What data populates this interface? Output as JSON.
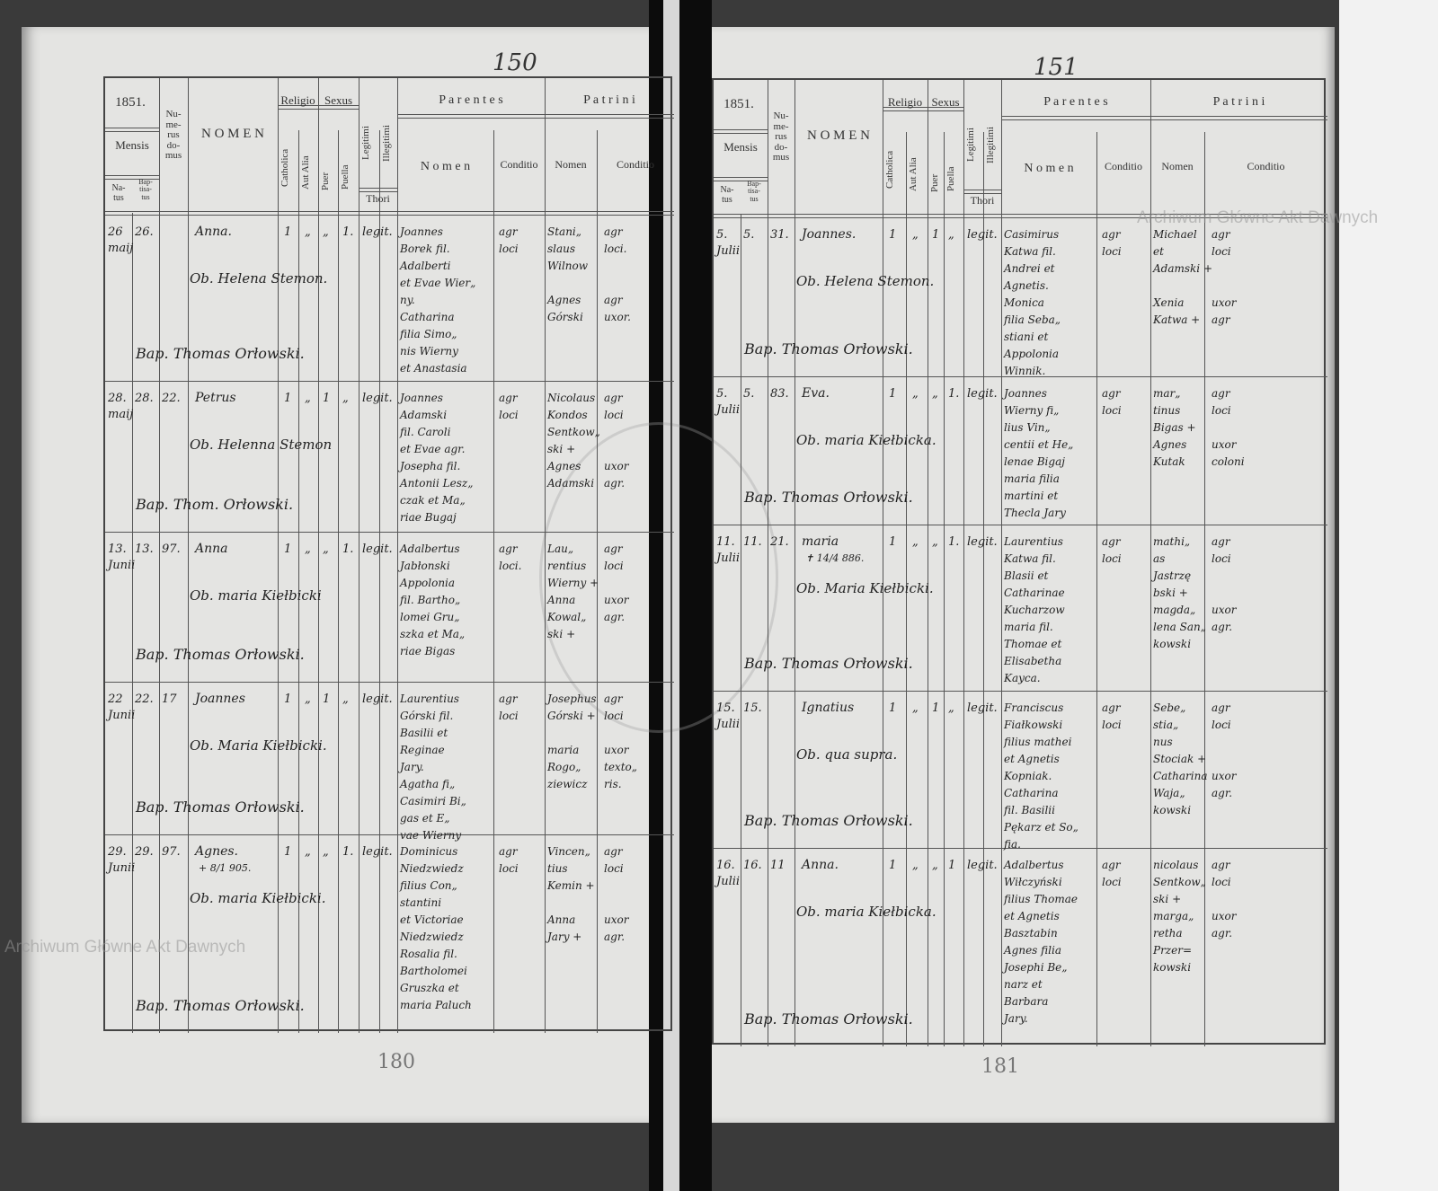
{
  "watermark": "Archiwum Główne Akt Dawnych",
  "colors": {
    "paper": "#e4e4e2",
    "ink": "#222222",
    "background": "#3a3a3a"
  },
  "header": {
    "year": "1851.",
    "mensis": "Mensis",
    "natus": "Na-\ntus",
    "baptisatus": "Bap-\ntisa-\ntus",
    "numerus_domus": "Nu-\nme-\nrus\ndo-\nmus",
    "nomen": "N O M E N",
    "religio": "Religio",
    "catholica": "Catholica",
    "aut_alia": "Aut Alia",
    "sexus": "Sexus",
    "puer": "Puer",
    "puella": "Puella",
    "legitimi": "Legitimi",
    "illegitimi": "Illegitimi",
    "thori": "Thori",
    "parentes": "P a r e n t e s",
    "patrini": "P a t r i n i",
    "parentes_nomen": "N o m e n",
    "conditio": "Conditio",
    "patrini_nomen": "Nomen"
  },
  "pages": [
    {
      "top_number": "150",
      "bottom_number": "180",
      "entries": [
        {
          "natus": "26",
          "baptisatus": "26.",
          "mensis": "maij",
          "domus": "",
          "nomen": "Anna.",
          "note": "",
          "cath": "1",
          "alia": "„",
          "puer": "„",
          "puella": "1.",
          "thori": "legit.",
          "parentes": "Joannes\nBorek fil.\nAdalberti\net Evae Wier„\nny.\nCatharina\nfilia Simo„\nnis Wierny\net Anastasia",
          "parentes_cond": "agr\nloci",
          "patrini": "Stani„\nslaus\nWilnow\n\nAgnes\nGórski",
          "patrini_cond": "agr\nloci.\n\n\nagr\nuxor.",
          "obstetrix": "Ob. Helena Stemon.",
          "baptizans": "Bap. Thomas Orłowski."
        },
        {
          "natus": "28.",
          "baptisatus": "28.",
          "mensis": "maij",
          "domus": "22.",
          "nomen": "Petrus",
          "note": "",
          "cath": "1",
          "alia": "„",
          "puer": "1",
          "puella": "„",
          "thori": "legit.",
          "parentes": "Joannes\nAdamski\nfil. Caroli\net Evae agr.\nJosepha fil.\nAntonii Lesz„\nczak et Ma„\nriae Bugaj",
          "parentes_cond": "agr\nloci",
          "patrini": "Nicolaus\nKondos\nSentkow„\nski +\nAgnes\nAdamski",
          "patrini_cond": "agr\nloci\n\n\nuxor\nagr.",
          "obstetrix": "Ob. Helenna Stemon",
          "baptizans": "Bap. Thom. Orłowski."
        },
        {
          "natus": "13.",
          "baptisatus": "13.",
          "mensis": "Junii",
          "domus": "97.",
          "nomen": "Anna",
          "note": "",
          "cath": "1",
          "alia": "„",
          "puer": "„",
          "puella": "1.",
          "thori": "legit.",
          "parentes": "Adalbertus\nJabłonski\nAppolonia\nfil. Bartho„\nlomei Gru„\nszka et Ma„\nriae Bigas",
          "parentes_cond": "agr\nloci.",
          "patrini": "Lau„\nrentius\nWierny +\nAnna\nKowal„\nski +",
          "patrini_cond": "agr\nloci\n\nuxor\nagr.",
          "obstetrix": "Ob. maria Kiełbicki",
          "baptizans": "Bap. Thomas Orłowski."
        },
        {
          "natus": "22",
          "baptisatus": "22.",
          "mensis": "Junii",
          "domus": "17",
          "nomen": "Joannes",
          "note": "",
          "cath": "1",
          "alia": "„",
          "puer": "1",
          "puella": "„",
          "thori": "legit.",
          "parentes": "Laurentius\nGórski fil.\nBasilii et\nReginae\nJary.\nAgatha fi„\nCasimiri Bi„\ngas et E„\nvae Wierny",
          "parentes_cond": "agr\nloci",
          "patrini": "Josephus\nGórski +\n\nmaria\nRogo„\nziewicz",
          "patrini_cond": "agr\nloci\n\nuxor\ntexto„\nris.",
          "obstetrix": "Ob. Maria Kiełbicki.",
          "baptizans": "Bap. Thomas Orłowski."
        },
        {
          "natus": "29.",
          "baptisatus": "29.",
          "mensis": "Junii",
          "domus": "97.",
          "nomen": "Agnes.",
          "note": "+ 8/1 905.",
          "cath": "1",
          "alia": "„",
          "puer": "„",
          "puella": "1.",
          "thori": "legit.",
          "parentes": "Dominicus\nNiedzwiedz\nfilius Con„\nstantini\net Victoriae\nNiedzwiedz\nRosalia fil.\nBartholomei\nGruszka et\nmaria Paluch",
          "parentes_cond": "agr\nloci",
          "patrini": "Vincen„\ntius\nKemin +\n\nAnna\nJary +",
          "patrini_cond": "agr\nloci\n\n\nuxor\nagr.",
          "obstetrix": "Ob. maria Kiełbicki.",
          "baptizans": "Bap. Thomas Orłowski."
        }
      ]
    },
    {
      "top_number": "151",
      "bottom_number": "181",
      "entries": [
        {
          "natus": "5.",
          "baptisatus": "5.",
          "mensis": "Julii",
          "domus": "31.",
          "nomen": "Joannes.",
          "note": "",
          "cath": "1",
          "alia": "„",
          "puer": "1",
          "puella": "„",
          "thori": "legit.",
          "parentes": "Casimirus\nKatwa fil.\nAndrei et\nAgnetis.\nMonica\nfilia Seba„\nstiani et\nAppolonia\nWinnik.",
          "parentes_cond": "agr\nloci",
          "patrini": "Michael\net\nAdamski +\n\nXenia\nKatwa +",
          "patrini_cond": "agr\nloci\n\n\nuxor\nagr",
          "obstetrix": "Ob. Helena Stemon.",
          "baptizans": "Bap. Thomas Orłowski."
        },
        {
          "natus": "5.",
          "baptisatus": "5.",
          "mensis": "Julii",
          "domus": "83.",
          "nomen": "Eva.",
          "note": "",
          "cath": "1",
          "alia": "„",
          "puer": "„",
          "puella": "1.",
          "thori": "legit.",
          "parentes": "Joannes\nWierny fi„\nlius Vin„\ncentii et He„\nlenae Bigaj\nmaria filia\nmartini et\nThecla Jary",
          "parentes_cond": "agr\nloci",
          "patrini": "mar„\ntinus\nBigas +\nAgnes\nKutak",
          "patrini_cond": "agr\nloci\n\nuxor\ncoloni",
          "obstetrix": "Ob. maria Kiełbicka.",
          "baptizans": "Bap. Thomas Orłowski."
        },
        {
          "natus": "11.",
          "baptisatus": "11.",
          "mensis": "Julii",
          "domus": "21.",
          "nomen": "maria",
          "note": "✝ 14/4 886.",
          "cath": "1",
          "alia": "„",
          "puer": "„",
          "puella": "1.",
          "thori": "legit.",
          "parentes": "Laurentius\nKatwa fil.\nBlasii et\nCatharinae\nKucharzow\nmaria fil.\nThomae et\nElisabetha\nKayca.",
          "parentes_cond": "agr\nloci",
          "patrini": "mathi„\nas\nJastrzę\nbski +\nmagda„\nlena San„\nkowski",
          "patrini_cond": "agr\nloci\n\n\nuxor\nagr.",
          "obstetrix": "Ob. Maria Kiełbicki.",
          "baptizans": "Bap. Thomas Orłowski."
        },
        {
          "natus": "15.",
          "baptisatus": "15.",
          "mensis": "Julii",
          "domus": "",
          "nomen": "Ignatius",
          "note": "",
          "cath": "1",
          "alia": "„",
          "puer": "1",
          "puella": "„",
          "thori": "legit.",
          "parentes": "Franciscus\nFiałkowski\nfilius mathei\net Agnetis\nKopniak.\nCatharina\nfil. Basilii\nPękarz et So„\nfia.",
          "parentes_cond": "agr\nloci",
          "patrini": "Sebe„\nstia„\nnus\nStociak +\nCatharina\nWaja„\nkowski",
          "patrini_cond": "agr\nloci\n\n\nuxor\nagr.",
          "obstetrix": "Ob. qua supra.",
          "baptizans": "Bap. Thomas Orłowski."
        },
        {
          "natus": "16.",
          "baptisatus": "16.",
          "mensis": "Julii",
          "domus": "11",
          "nomen": "Anna.",
          "note": "",
          "cath": "1",
          "alia": "„",
          "puer": "„",
          "puella": "1",
          "thori": "legit.",
          "parentes": "Adalbertus\nWiłczyński\nfilius Thomae\net Agnetis\nBasztabin\nAgnes filia\nJosephi Be„\nnarz et\nBarbara\nJary.",
          "parentes_cond": "agr\nloci",
          "patrini": "nicolaus\nSentkow„\nski +\nmarga„\nretha\nPrzer=\nkowski",
          "patrini_cond": "agr\nloci\n\nuxor\nagr.",
          "obstetrix": "Ob. maria Kiełbicka.",
          "baptizans": "Bap. Thomas Orłowski."
        }
      ]
    }
  ]
}
